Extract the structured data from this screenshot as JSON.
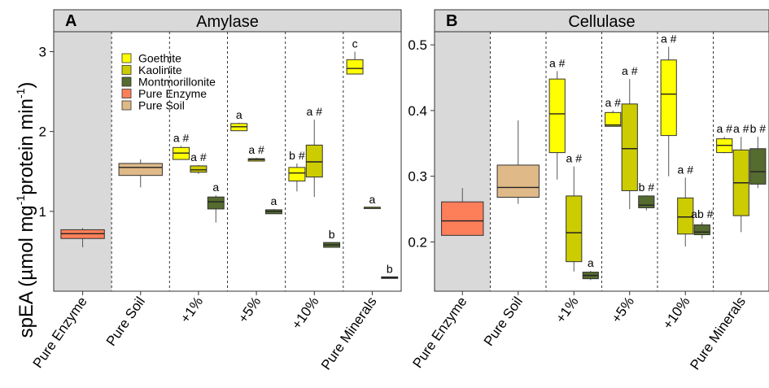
{
  "figure": {
    "ylabel_main": "spEA (µmol mg",
    "ylabel_sup1": "-1",
    "ylabel_mid": "protein min",
    "ylabel_sup2": "-1",
    "ylabel_end": ")"
  },
  "chart_data": [
    {
      "type": "box",
      "panel": "A",
      "title": "Amylase",
      "xlabel": "",
      "ylabel": "spEA (µmol mg-1 protein min-1)",
      "ylim": [
        0.0,
        3.25
      ],
      "yticks": [
        1,
        2,
        3
      ],
      "categories": [
        "Pure Enzyme",
        "Pure Soil",
        "+1%",
        "+5%",
        "+10%",
        "Pure Minerals"
      ],
      "shaded_category": "Pure Enzyme",
      "legend": {
        "placement": "top-left",
        "entries": [
          "Goethite",
          "Kaolinite",
          "Montmorillonite",
          "Pure Enzyme",
          "Pure Soil"
        ]
      },
      "boxes": [
        {
          "category": "Pure Enzyme",
          "series": "Pure Enzyme",
          "min": 0.55,
          "q1": 0.66,
          "median": 0.72,
          "q3": 0.77,
          "max": 0.79,
          "label": ""
        },
        {
          "category": "Pure Soil",
          "series": "Pure Soil",
          "min": 1.3,
          "q1": 1.45,
          "median": 1.55,
          "q3": 1.6,
          "max": 1.65,
          "label": ""
        },
        {
          "category": "+1%",
          "series": "Goethite",
          "min": 1.65,
          "q1": 1.65,
          "median": 1.73,
          "q3": 1.8,
          "max": 1.82,
          "label": "a #"
        },
        {
          "category": "+1%",
          "series": "Kaolinite",
          "min": 1.47,
          "q1": 1.49,
          "median": 1.52,
          "q3": 1.57,
          "max": 1.58,
          "label": "a #"
        },
        {
          "category": "+1%",
          "series": "Montmorillonite",
          "min": 0.86,
          "q1": 1.03,
          "median": 1.12,
          "q3": 1.18,
          "max": 1.2,
          "label": "a"
        },
        {
          "category": "+5%",
          "series": "Goethite",
          "min": 2.01,
          "q1": 2.01,
          "median": 2.06,
          "q3": 2.1,
          "max": 2.11,
          "label": "a"
        },
        {
          "category": "+5%",
          "series": "Kaolinite",
          "min": 1.63,
          "q1": 1.63,
          "median": 1.65,
          "q3": 1.66,
          "max": 1.67,
          "label": "a #"
        },
        {
          "category": "+5%",
          "series": "Montmorillonite",
          "min": 0.97,
          "q1": 0.97,
          "median": 1.0,
          "q3": 1.02,
          "max": 1.03,
          "label": "a"
        },
        {
          "category": "+10%",
          "series": "Goethite",
          "min": 1.25,
          "q1": 1.38,
          "median": 1.48,
          "q3": 1.55,
          "max": 1.6,
          "label": "b #"
        },
        {
          "category": "+10%",
          "series": "Kaolinite",
          "min": 1.18,
          "q1": 1.43,
          "median": 1.62,
          "q3": 1.83,
          "max": 2.15,
          "label": "a #"
        },
        {
          "category": "+10%",
          "series": "Montmorillonite",
          "min": 0.55,
          "q1": 0.55,
          "median": 0.58,
          "q3": 0.61,
          "max": 0.61,
          "label": "b"
        },
        {
          "category": "Pure Minerals",
          "series": "Goethite",
          "min": 2.72,
          "q1": 2.72,
          "median": 2.79,
          "q3": 2.9,
          "max": 3.0,
          "label": "c"
        },
        {
          "category": "Pure Minerals",
          "series": "Kaolinite",
          "min": 1.05,
          "q1": 1.05,
          "median": 1.05,
          "q3": 1.05,
          "max": 1.05,
          "label": "a"
        },
        {
          "category": "Pure Minerals",
          "series": "Montmorillonite",
          "min": 0.16,
          "q1": 0.16,
          "median": 0.17,
          "q3": 0.18,
          "max": 0.18,
          "label": "b"
        }
      ]
    },
    {
      "type": "box",
      "panel": "B",
      "title": "Cellulase",
      "xlabel": "",
      "ylabel": "",
      "ylim": [
        0.125,
        0.52
      ],
      "yticks": [
        0.2,
        0.3,
        0.4,
        0.5
      ],
      "categories": [
        "Pure Enzyme",
        "Pure Soil",
        "+1%",
        "+5%",
        "+10%",
        "Pure Minerals"
      ],
      "shaded_category": "Pure Enzyme",
      "boxes": [
        {
          "category": "Pure Enzyme",
          "series": "Pure Enzyme",
          "min": 0.21,
          "q1": 0.21,
          "median": 0.232,
          "q3": 0.261,
          "max": 0.282,
          "label": ""
        },
        {
          "category": "Pure Soil",
          "series": "Pure Soil",
          "min": 0.258,
          "q1": 0.268,
          "median": 0.283,
          "q3": 0.317,
          "max": 0.385,
          "label": ""
        },
        {
          "category": "+1%",
          "series": "Goethite",
          "min": 0.295,
          "q1": 0.336,
          "median": 0.395,
          "q3": 0.448,
          "max": 0.46,
          "label": "a #"
        },
        {
          "category": "+1%",
          "series": "Kaolinite",
          "min": 0.155,
          "q1": 0.17,
          "median": 0.214,
          "q3": 0.27,
          "max": 0.315,
          "label": "a #"
        },
        {
          "category": "+1%",
          "series": "Montmorillonite",
          "min": 0.142,
          "q1": 0.144,
          "median": 0.149,
          "q3": 0.154,
          "max": 0.156,
          "label": "a"
        },
        {
          "category": "+5%",
          "series": "Goethite",
          "min": 0.376,
          "q1": 0.376,
          "median": 0.378,
          "q3": 0.397,
          "max": 0.4,
          "label": "a #"
        },
        {
          "category": "+5%",
          "series": "Kaolinite",
          "min": 0.25,
          "q1": 0.278,
          "median": 0.342,
          "q3": 0.41,
          "max": 0.448,
          "label": "a #"
        },
        {
          "category": "+5%",
          "series": "Montmorillonite",
          "min": 0.248,
          "q1": 0.252,
          "median": 0.256,
          "q3": 0.27,
          "max": 0.271,
          "label": "b #"
        },
        {
          "category": "+10%",
          "series": "Goethite",
          "min": 0.3,
          "q1": 0.362,
          "median": 0.425,
          "q3": 0.477,
          "max": 0.497,
          "label": "a #"
        },
        {
          "category": "+10%",
          "series": "Kaolinite",
          "min": 0.193,
          "q1": 0.212,
          "median": 0.238,
          "q3": 0.267,
          "max": 0.298,
          "label": "a #"
        },
        {
          "category": "+10%",
          "series": "Montmorillonite",
          "min": 0.205,
          "q1": 0.211,
          "median": 0.215,
          "q3": 0.226,
          "max": 0.23,
          "label": "ab #"
        },
        {
          "category": "Pure Minerals",
          "series": "Goethite",
          "min": 0.335,
          "q1": 0.336,
          "median": 0.347,
          "q3": 0.357,
          "max": 0.36,
          "label": "a #"
        },
        {
          "category": "Pure Minerals",
          "series": "Kaolinite",
          "min": 0.215,
          "q1": 0.24,
          "median": 0.29,
          "q3": 0.34,
          "max": 0.36,
          "label": "a #"
        },
        {
          "category": "Pure Minerals",
          "series": "Montmorillonite",
          "min": 0.282,
          "q1": 0.288,
          "median": 0.307,
          "q3": 0.342,
          "max": 0.36,
          "label": "b #"
        }
      ]
    }
  ],
  "colors": {
    "Goethite": "#ffff00",
    "Kaolinite": "#cccc00",
    "Montmorillonite": "#556b2f",
    "Pure Enzyme": "#fc7f5a",
    "Pure Soil": "#dfb987",
    "strip": "#d9d9d9",
    "shade": "#d9d9d9",
    "outline": "#333333"
  }
}
